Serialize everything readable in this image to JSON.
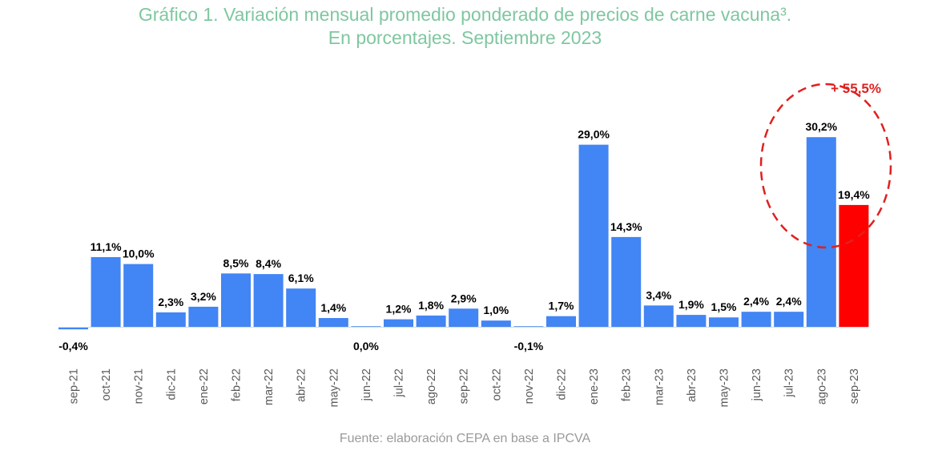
{
  "chart_data": {
    "type": "bar",
    "title_line1": "Gráfico 1. Variación mensual promedio ponderado de precios de carne vacuna³.",
    "title_line2": "En porcentajes. Septiembre 2023",
    "source": "Fuente: elaboración CEPA en base a IPCVA",
    "xlabel": "",
    "ylabel": "",
    "ylim": [
      -1,
      33
    ],
    "grid": false,
    "categories": [
      "sep-21",
      "oct-21",
      "nov-21",
      "dic-21",
      "ene-22",
      "feb-22",
      "mar-22",
      "abr-22",
      "may-22",
      "jun-22",
      "jul-22",
      "ago-22",
      "sep-22",
      "oct-22",
      "nov-22",
      "dic-22",
      "ene-23",
      "feb-23",
      "mar-23",
      "abr-23",
      "may-23",
      "jun-23",
      "jul-23",
      "ago-23",
      "sep-23"
    ],
    "values": [
      -0.4,
      11.1,
      10.0,
      2.3,
      3.2,
      8.5,
      8.4,
      6.1,
      1.4,
      0.0,
      1.2,
      1.8,
      2.9,
      1.0,
      -0.1,
      1.7,
      29.0,
      14.3,
      3.4,
      1.9,
      1.5,
      2.4,
      2.4,
      30.2,
      19.4
    ],
    "labels": [
      "-0,4%",
      "11,1%",
      "10,0%",
      "2,3%",
      "3,2%",
      "8,5%",
      "8,4%",
      "6,1%",
      "1,4%",
      "0,0%",
      "1,2%",
      "1,8%",
      "2,9%",
      "1,0%",
      "-0,1%",
      "1,7%",
      "29,0%",
      "14,3%",
      "3,4%",
      "1,9%",
      "1,5%",
      "2,4%",
      "2,4%",
      "30,2%",
      "19,4%"
    ],
    "highlight_index": 24,
    "annotation": "+ 55,5%",
    "colors": {
      "bar": "#4285f4",
      "highlight": "#ff0000",
      "annotation": "#e02020",
      "title": "#7fc7a0"
    }
  }
}
